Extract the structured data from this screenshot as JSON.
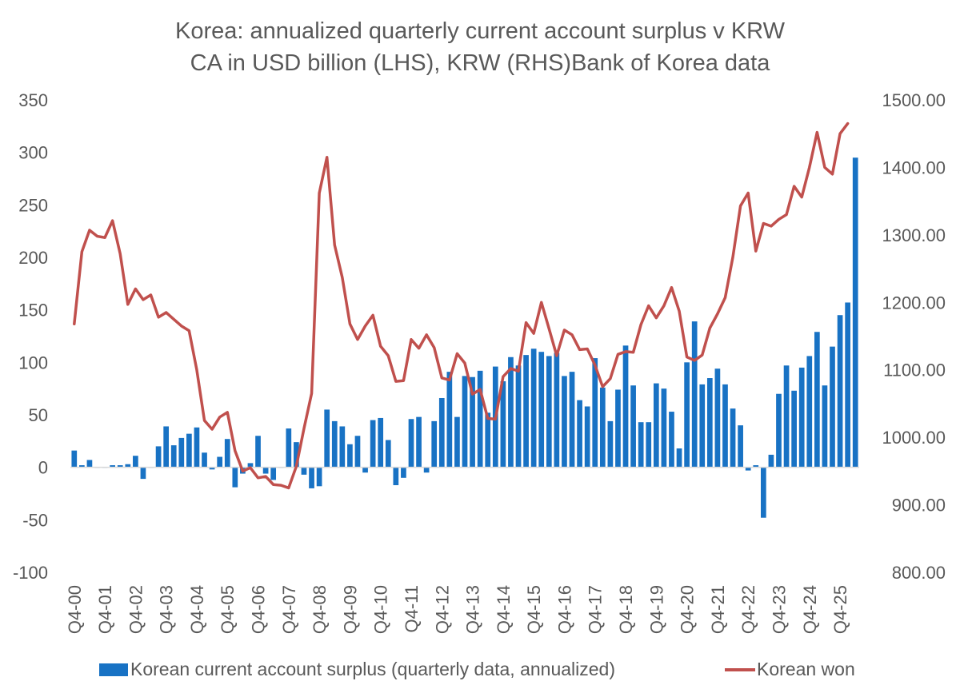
{
  "chart_data": {
    "type": "bar",
    "title": "Korea: annualized quarterly current account surplus v KRW",
    "subtitle": "CA in USD billion (LHS), KRW (RHS)Bank of Korea data",
    "y_left_range": [
      -100,
      350
    ],
    "y_right_range": [
      800,
      1500
    ],
    "y_left_ticks": [
      "350",
      "300",
      "250",
      "200",
      "150",
      "100",
      "50",
      "0",
      "-50",
      "-100"
    ],
    "y_right_ticks": [
      "1500.00",
      "1400.00",
      "1300.00",
      "1200.00",
      "1100.00",
      "1000.00",
      "900.00",
      "800.00"
    ],
    "x_tick_labels": [
      "Q4-00",
      "Q4-01",
      "Q4-02",
      "Q4-03",
      "Q4-04",
      "Q4-05",
      "Q4-06",
      "Q4-07",
      "Q4-08",
      "Q4-09",
      "Q4-10",
      "Q4-11",
      "Q4-12",
      "Q4-13",
      "Q4-14",
      "Q4-15",
      "Q4-16",
      "Q4-17",
      "Q4-18",
      "Q4-19",
      "Q4-20",
      "Q4-21",
      "Q4-22",
      "Q4-23",
      "Q4-24",
      "Q4-25"
    ],
    "quarters_start": "Q4-00",
    "grid": false,
    "legend_position": "bottom",
    "colors": {
      "bars": "#1872C4",
      "line": "#C0504D",
      "axis": "#D9D9D9",
      "text": "#595959"
    },
    "series": [
      {
        "name": "Korean current account surplus (quarterly data, annualized)",
        "type": "bar",
        "axis": "left",
        "values": [
          16,
          2,
          7,
          0,
          0,
          2,
          2,
          3,
          11,
          -11,
          0,
          20,
          39,
          21,
          28,
          32,
          38,
          14,
          -2,
          10,
          27,
          -19,
          -6,
          4,
          30,
          -6,
          -12,
          0,
          37,
          24,
          -7,
          -20,
          -18,
          55,
          44,
          39,
          22,
          30,
          -5,
          45,
          47,
          26,
          -17,
          -10,
          46,
          48,
          -5,
          44,
          66,
          91,
          48,
          87,
          86,
          92,
          52,
          96,
          82,
          105,
          97,
          107,
          113,
          110,
          106,
          109,
          87,
          91,
          64,
          58,
          104,
          76,
          44,
          74,
          116,
          78,
          43,
          43,
          80,
          75,
          53,
          18,
          100,
          139,
          79,
          85,
          94,
          79,
          56,
          40,
          -3,
          2,
          -48,
          12,
          70,
          97,
          73,
          95,
          106,
          129,
          78,
          115,
          145,
          157,
          295
        ]
      },
      {
        "name": "Korean won",
        "type": "line",
        "axis": "right",
        "values": [
          1168,
          1275,
          1307,
          1298,
          1296,
          1321,
          1272,
          1197,
          1220,
          1204,
          1211,
          1178,
          1185,
          1175,
          1165,
          1158,
          1100,
          1025,
          1012,
          1030,
          1037,
          980,
          950,
          955,
          940,
          942,
          930,
          929,
          925,
          957,
          1013,
          1065,
          1362,
          1415,
          1285,
          1237,
          1168,
          1145,
          1165,
          1181,
          1135,
          1121,
          1083,
          1084,
          1145,
          1132,
          1152,
          1133,
          1088,
          1085,
          1124,
          1110,
          1064,
          1071,
          1028,
          1027,
          1090,
          1102,
          1098,
          1170,
          1154,
          1200,
          1161,
          1121,
          1159,
          1152,
          1130,
          1131,
          1107,
          1075,
          1087,
          1123,
          1127,
          1126,
          1167,
          1195,
          1177,
          1195,
          1222,
          1187,
          1119,
          1114,
          1122,
          1162,
          1183,
          1207,
          1267,
          1343,
          1362,
          1276,
          1317,
          1313,
          1323,
          1330,
          1372,
          1356,
          1400,
          1452,
          1400,
          1390,
          1450,
          1465
        ]
      }
    ]
  }
}
